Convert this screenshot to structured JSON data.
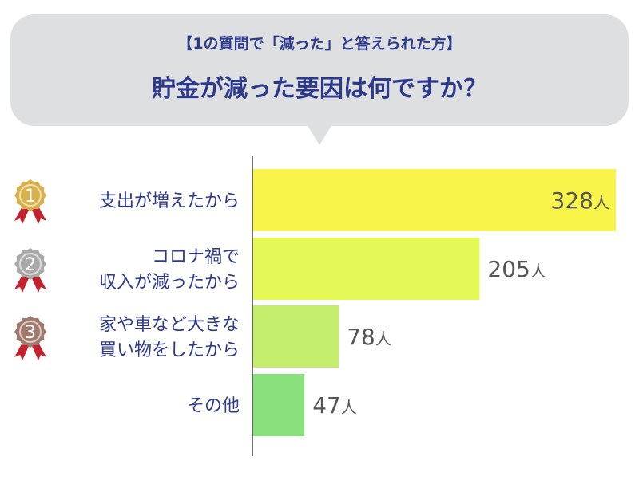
{
  "header": {
    "subtitle": "【1の質問で「減った」と答えられた方】",
    "title": "貯金が減った要因は何ですか？"
  },
  "chart_data": {
    "type": "bar",
    "orientation": "horizontal",
    "title": "貯金が減った要因は何ですか？",
    "subtitle": "【1の質問で「減った」と答えられた方】",
    "categories": [
      [
        "支出が増えたから"
      ],
      [
        "コロナ禍で",
        "収入が減ったから"
      ],
      [
        "家や車など大きな",
        "買い物をしたから"
      ],
      [
        "その他"
      ]
    ],
    "values": [
      328,
      205,
      78,
      47
    ],
    "unit": "人",
    "ranks": [
      "1",
      "2",
      "3",
      null
    ],
    "xlim": [
      0,
      328
    ],
    "grid": false,
    "colors": {
      "bars": [
        "#f8f44a",
        "#e4f856",
        "#c3ee6c",
        "#8ae07c"
      ],
      "medals": [
        "#d9b14c",
        "#a9a9a9",
        "#a07a6c"
      ],
      "ribbon": "#c4202e",
      "category_text": "#2d3a8c",
      "value_text": "#555555",
      "axis": "#444444"
    }
  }
}
